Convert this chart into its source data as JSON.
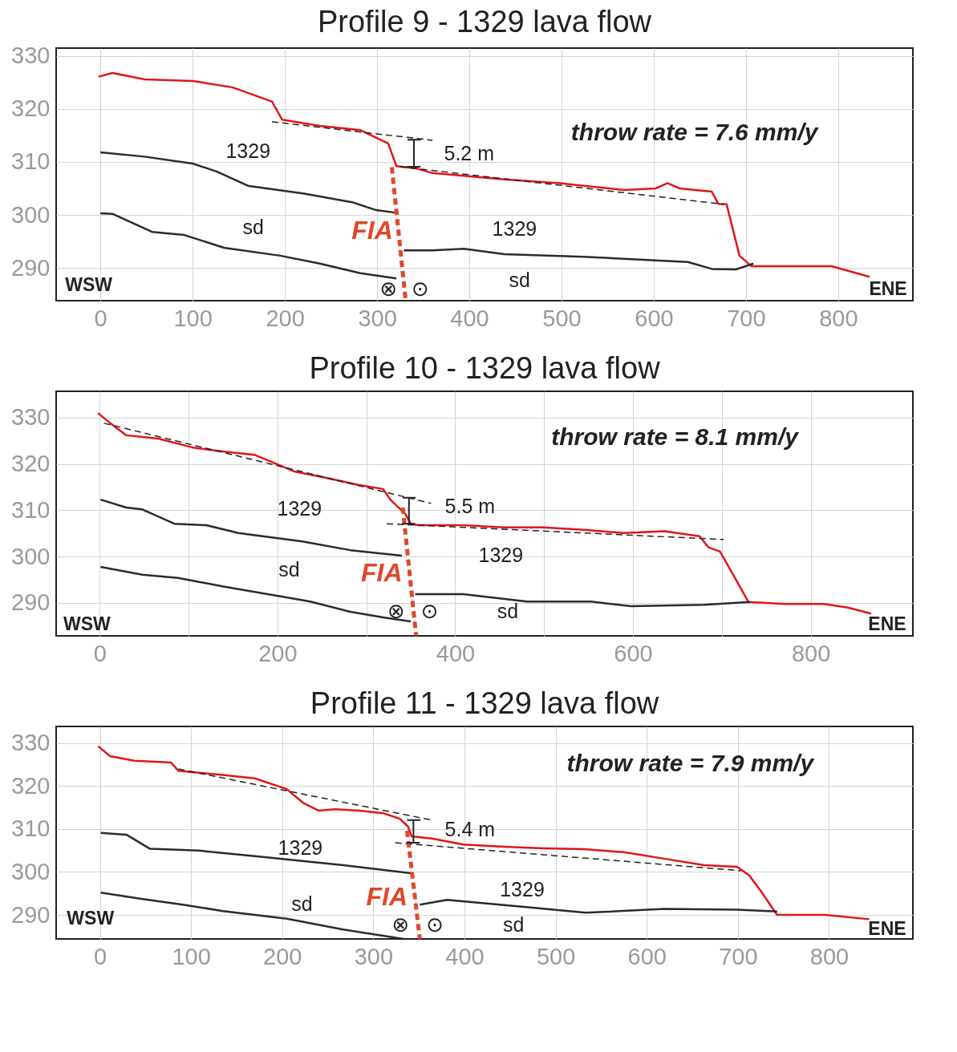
{
  "chart_data": [
    {
      "type": "line",
      "title": "Profile 9  - 1329 lava flow",
      "xlim": [
        -48,
        881
      ],
      "ylim": [
        283.8,
        331.5
      ],
      "xticks": [
        0,
        100,
        200,
        300,
        400,
        500,
        600,
        700,
        800
      ],
      "yticks": [
        290,
        300,
        310,
        320,
        330
      ],
      "grid": true,
      "marker": "none",
      "series": [
        {
          "color": "#e3141b",
          "x": [
            -2,
            13,
            48,
            100,
            143,
            186,
            197,
            238,
            282,
            312,
            321,
            342,
            360,
            394,
            438,
            498,
            568,
            602,
            615,
            628,
            663,
            670,
            679,
            693,
            706,
            741,
            793,
            834
          ],
          "values": [
            326.1,
            326.8,
            325.6,
            325.3,
            324.1,
            321.4,
            318,
            316.8,
            316,
            313.5,
            309.2,
            308.8,
            307.9,
            307.4,
            306.7,
            306,
            304.7,
            305,
            306,
            305,
            304.4,
            302.1,
            302,
            292.3,
            290.3,
            290.3,
            290.3,
            288.3
          ]
        },
        {
          "color": "#2b2b2b",
          "x": [
            0,
            48,
            100,
            126,
            160,
            221,
            273,
            299,
            321
          ],
          "values": [
            311.8,
            311,
            309.7,
            308.2,
            305.5,
            304,
            302.4,
            300.9,
            300.4
          ]
        },
        {
          "color": "#2b2b2b",
          "x": [
            0,
            13,
            56,
            91,
            134,
            195,
            238,
            282,
            321
          ],
          "values": [
            300.3,
            300.2,
            296.8,
            296.2,
            293.8,
            292.3,
            290.8,
            289,
            288
          ]
        },
        {
          "color": "#2b2b2b",
          "x": [
            329,
            360,
            394,
            438,
            524,
            637,
            663,
            689,
            708
          ],
          "values": [
            293.3,
            293.3,
            293.6,
            292.6,
            292.1,
            291.1,
            289.8,
            289.7,
            290.8
          ]
        },
        {
          "color": "#222222",
          "line_style": "dashed",
          "x": [
            186,
            360
          ],
          "values": [
            317.6,
            314.1
          ]
        },
        {
          "color": "#222222",
          "line_style": "dashed",
          "x": [
            325,
            676
          ],
          "values": [
            309.1,
            302
          ]
        },
        {
          "color": "#e0472a",
          "line_style": "dashed",
          "x": [
            316,
            331
          ],
          "values": [
            309,
            283.8
          ]
        },
        {
          "color": "#222222",
          "x": [
            333,
            347,
            340,
            340,
            333,
            347
          ],
          "values": [
            314.2,
            314.2,
            314.2,
            309.1,
            309.1,
            309.1
          ]
        }
      ],
      "annotations": [
        "1329",
        "sd",
        "FIA",
        "1329",
        "sd",
        "5.2 m",
        "throw rate = 7.6 mm/y",
        "WSW",
        "ENE",
        "⊗",
        "⊙"
      ]
    },
    {
      "type": "line",
      "title": "Profile 10  - 1329 lava flow",
      "xlim": [
        -49,
        915
      ],
      "ylim": [
        282.9,
        335.7
      ],
      "xticks": [
        0,
        {
          "value": 100,
          "label": null
        },
        200,
        {
          "value": 300,
          "label": null
        },
        400,
        {
          "value": 500,
          "label": null
        },
        600,
        {
          "value": 700,
          "label": null
        },
        800
      ],
      "yticks": [
        290,
        300,
        310,
        320,
        330
      ],
      "grid": true,
      "marker": "none",
      "series": [
        {
          "color": "#e3141b",
          "x": [
            -2,
            12,
            30,
            66,
            104,
            138,
            174,
            219,
            255,
            291,
            319,
            327,
            344,
            350,
            359,
            409,
            454,
            499,
            545,
            590,
            635,
            675,
            685,
            698,
            716,
            730,
            770,
            815,
            842,
            868
          ],
          "values": [
            331,
            328.8,
            326.2,
            325.5,
            323.6,
            322.7,
            322,
            318.4,
            317,
            315.5,
            314.6,
            312.3,
            309.2,
            307.1,
            306.8,
            306.8,
            306.3,
            306.3,
            305.8,
            305.1,
            305.5,
            304.4,
            302,
            301.1,
            295,
            290.2,
            289.8,
            289.8,
            289,
            287.7
          ]
        },
        {
          "color": "#2b2b2b",
          "x": [
            1,
            30,
            48,
            84,
            120,
            156,
            228,
            282,
            340
          ],
          "values": [
            312.3,
            310.6,
            310.2,
            307.1,
            306.8,
            305.1,
            303.3,
            301.4,
            300.2
          ]
        },
        {
          "color": "#2b2b2b",
          "x": [
            1,
            48,
            88,
            138,
            210,
            237,
            282,
            319,
            350
          ],
          "values": [
            297.8,
            296.1,
            295.4,
            293.6,
            291.2,
            290.3,
            288.1,
            286.9,
            286
          ]
        },
        {
          "color": "#2b2b2b",
          "x": [
            355,
            409,
            481,
            553,
            598,
            680,
            732
          ],
          "values": [
            291.9,
            291.9,
            290.3,
            290.3,
            289.3,
            289.6,
            290.2
          ]
        },
        {
          "color": "#222222",
          "line_style": "dashed",
          "x": [
            5,
            373
          ],
          "values": [
            328.8,
            311.5
          ]
        },
        {
          "color": "#222222",
          "line_style": "dashed",
          "x": [
            323,
            702
          ],
          "values": [
            307.1,
            303.7
          ]
        },
        {
          "color": "#e0472a",
          "line_style": "dashed",
          "x": [
            341,
            356
          ],
          "values": [
            310.6,
            282.9
          ]
        },
        {
          "color": "#222222",
          "x": [
            341,
            355,
            348,
            348,
            341,
            355
          ],
          "values": [
            312.7,
            312.7,
            312.7,
            307.1,
            307.1,
            307.1
          ]
        }
      ],
      "annotations": [
        "1329",
        "sd",
        "FIA",
        "1329",
        "sd",
        "5.5 m",
        "throw rate = 8.1 mm/y",
        "WSW",
        "ENE",
        "⊗",
        "⊙"
      ]
    },
    {
      "type": "line",
      "title": "Profile 11 - 1329 lava flow",
      "xlim": [
        -48,
        892
      ],
      "ylim": [
        284.4,
        333.9
      ],
      "xticks": [
        0,
        100,
        200,
        300,
        400,
        500,
        600,
        700,
        800
      ],
      "yticks": [
        290,
        300,
        310,
        320,
        330
      ],
      "grid": true,
      "marker": "none",
      "series": [
        {
          "color": "#e3141b",
          "x": [
            -2,
            11,
            38,
            78,
            86,
            135,
            170,
            205,
            223,
            240,
            258,
            285,
            311,
            329,
            338,
            342,
            364,
            399,
            443,
            487,
            531,
            575,
            619,
            663,
            699,
            712,
            725,
            743,
            796,
            844
          ],
          "values": [
            329.3,
            327,
            325.9,
            325.5,
            323.6,
            322.6,
            321.8,
            319.3,
            316.1,
            314.3,
            314.6,
            314.3,
            313.7,
            312.4,
            310.6,
            308.3,
            307.8,
            306.4,
            305.9,
            305.5,
            305.3,
            304.6,
            303.1,
            301.6,
            301.2,
            299.3,
            295.6,
            290,
            290,
            289
          ]
        },
        {
          "color": "#2b2b2b",
          "x": [
            1,
            29,
            55,
            108,
            179,
            267,
            342
          ],
          "values": [
            309.1,
            308.7,
            305.4,
            305,
            303.5,
            301.6,
            299.7
          ]
        },
        {
          "color": "#2b2b2b",
          "x": [
            1,
            47,
            91,
            135,
            205,
            267,
            333
          ],
          "values": [
            295.2,
            293.7,
            292.4,
            290.9,
            289.1,
            286.6,
            284.4
          ]
        },
        {
          "color": "#2b2b2b",
          "x": [
            351,
            381,
            417,
            470,
            533,
            619,
            699,
            743
          ],
          "values": [
            292.4,
            293.5,
            292.8,
            291.8,
            290.5,
            291.4,
            291.2,
            290.8
          ]
        },
        {
          "color": "#222222",
          "line_style": "dashed",
          "x": [
            86,
            364
          ],
          "values": [
            324,
            312.1
          ]
        },
        {
          "color": "#222222",
          "line_style": "dashed",
          "x": [
            324,
            703
          ],
          "values": [
            306.8,
            300.3
          ]
        },
        {
          "color": "#e0472a",
          "line_style": "dashed",
          "x": [
            337,
            351
          ],
          "values": [
            309.6,
            284.4
          ]
        },
        {
          "color": "#222222",
          "x": [
            337,
            351,
            344,
            344,
            337,
            351
          ],
          "values": [
            312.1,
            312.1,
            312.1,
            306.8,
            306.8,
            306.8
          ]
        }
      ],
      "annotations": [
        "1329",
        "sd",
        "FIA",
        "1329",
        "sd",
        "5.4 m",
        "throw rate = 7.9 mm/y",
        "WSW",
        "ENE",
        "⊗",
        "⊙"
      ]
    }
  ]
}
